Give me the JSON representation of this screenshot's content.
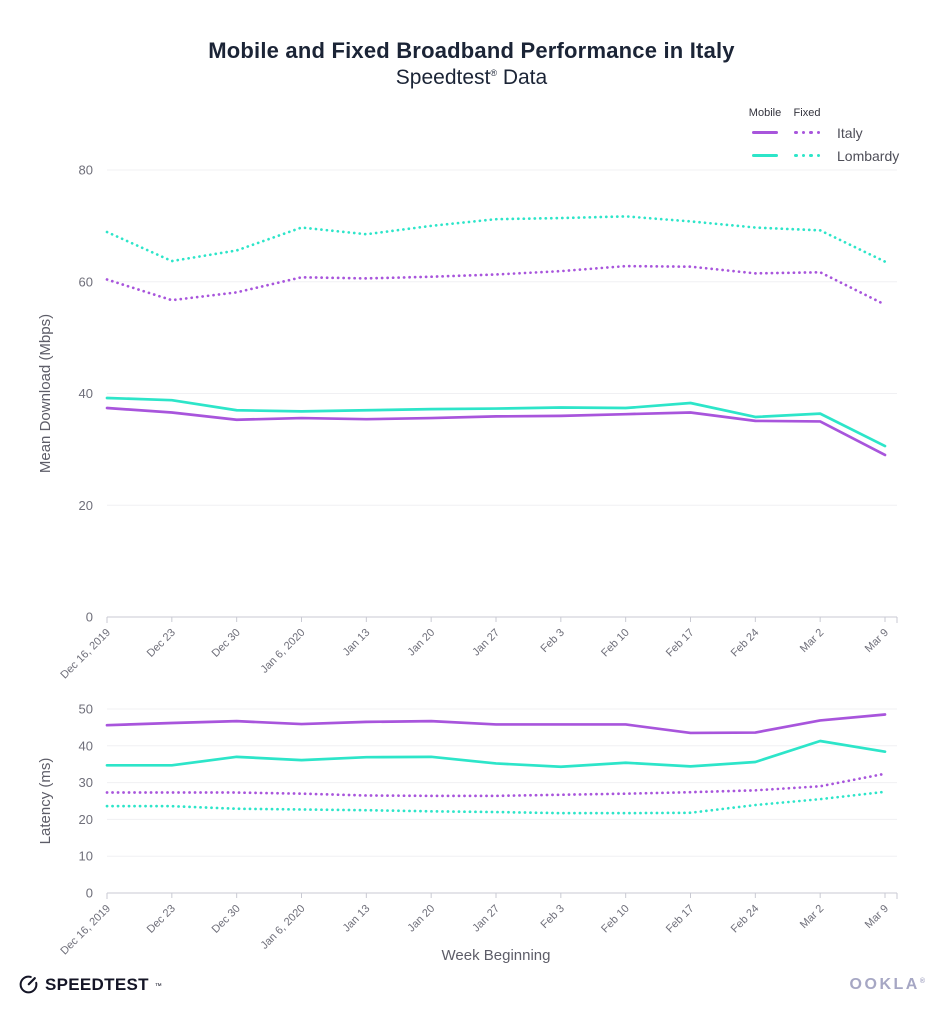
{
  "header": {
    "title": "Mobile and Fixed Broadband Performance in Italy",
    "subtitle_brand": "Speedtest",
    "subtitle_reg": "®",
    "subtitle_rest": " Data"
  },
  "legend": {
    "col_mobile": "Mobile",
    "col_fixed": "Fixed",
    "rows": [
      {
        "label": "Italy",
        "color": "#a855dc"
      },
      {
        "label": "Lombardy",
        "color": "#2de5c9"
      }
    ]
  },
  "chart_data": [
    {
      "type": "line",
      "ylabel": "Mean Download (Mbps)",
      "xlabel": "",
      "ylim": [
        0,
        80
      ],
      "yticks": [
        0,
        20,
        40,
        60,
        80
      ],
      "grid": true,
      "legend_position": "top-right",
      "categories": [
        "Dec 16, 2019",
        "Dec 23",
        "Dec 30",
        "Jan 6, 2020",
        "Jan 13",
        "Jan 20",
        "Jan 27",
        "Feb 3",
        "Feb 10",
        "Feb 17",
        "Feb 24",
        "Mar 2",
        "Mar 9"
      ],
      "series": [
        {
          "name": "Lombardy Fixed",
          "region": "Lombardy",
          "network": "Fixed",
          "style": "dotted",
          "color": "#2de5c9",
          "values": [
            68.9,
            63.7,
            65.6,
            69.7,
            68.5,
            70.0,
            71.2,
            71.4,
            71.7,
            70.8,
            69.7,
            69.2,
            63.6
          ]
        },
        {
          "name": "Italy Fixed",
          "region": "Italy",
          "network": "Fixed",
          "style": "dotted",
          "color": "#a855dc",
          "values": [
            60.4,
            56.7,
            58.1,
            60.8,
            60.6,
            60.9,
            61.3,
            61.9,
            62.8,
            62.7,
            61.5,
            61.7,
            55.9
          ]
        },
        {
          "name": "Lombardy Mobile",
          "region": "Lombardy",
          "network": "Mobile",
          "style": "solid",
          "color": "#2de5c9",
          "values": [
            39.2,
            38.8,
            37.0,
            36.8,
            37.0,
            37.2,
            37.3,
            37.5,
            37.4,
            38.3,
            35.8,
            36.4,
            30.6
          ]
        },
        {
          "name": "Italy Mobile",
          "region": "Italy",
          "network": "Mobile",
          "style": "solid",
          "color": "#a855dc",
          "values": [
            37.4,
            36.6,
            35.3,
            35.6,
            35.4,
            35.6,
            35.9,
            36.0,
            36.3,
            36.6,
            35.1,
            35.0,
            29.0
          ]
        }
      ]
    },
    {
      "type": "line",
      "ylabel": "Latency (ms)",
      "xlabel": "Week Beginning",
      "ylim": [
        0,
        50
      ],
      "yticks": [
        0,
        10,
        20,
        30,
        40,
        50
      ],
      "grid": true,
      "legend_position": "top-right",
      "categories": [
        "Dec 16, 2019",
        "Dec 23",
        "Dec 30",
        "Jan 6, 2020",
        "Jan 13",
        "Jan 20",
        "Jan 27",
        "Feb 3",
        "Feb 10",
        "Feb 17",
        "Feb 24",
        "Mar 2",
        "Mar 9"
      ],
      "series": [
        {
          "name": "Lombardy Fixed",
          "region": "Lombardy",
          "network": "Fixed",
          "style": "dotted",
          "color": "#2de5c9",
          "values": [
            23.6,
            23.6,
            22.9,
            22.7,
            22.5,
            22.2,
            22.0,
            21.7,
            21.7,
            21.8,
            23.9,
            25.5,
            27.5
          ]
        },
        {
          "name": "Italy Fixed",
          "region": "Italy",
          "network": "Fixed",
          "style": "dotted",
          "color": "#a855dc",
          "values": [
            27.3,
            27.3,
            27.3,
            27.0,
            26.5,
            26.4,
            26.4,
            26.7,
            27.0,
            27.4,
            27.9,
            29.0,
            32.4
          ]
        },
        {
          "name": "Lombardy Mobile",
          "region": "Lombardy",
          "network": "Mobile",
          "style": "solid",
          "color": "#2de5c9",
          "values": [
            34.7,
            34.7,
            37.0,
            36.1,
            36.9,
            37.0,
            35.2,
            34.3,
            35.4,
            34.4,
            35.6,
            41.3,
            38.4
          ]
        },
        {
          "name": "Italy Mobile",
          "region": "Italy",
          "network": "Mobile",
          "style": "solid",
          "color": "#a855dc",
          "values": [
            45.6,
            46.2,
            46.7,
            45.9,
            46.5,
            46.7,
            45.8,
            45.8,
            45.8,
            43.5,
            43.6,
            46.9,
            48.5
          ]
        }
      ]
    }
  ],
  "footer": {
    "speedtest": "SPEEDTEST",
    "speedtest_mark": "™",
    "ookla": "OOKLA",
    "ookla_mark": "®"
  }
}
